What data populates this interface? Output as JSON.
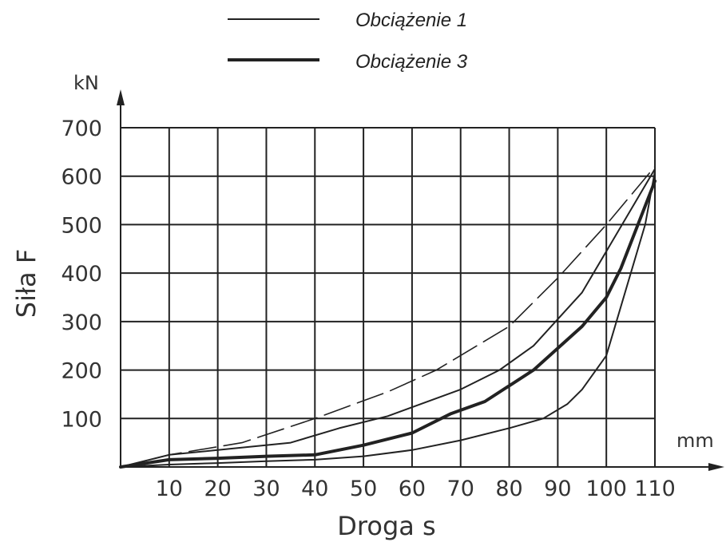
{
  "chart_data": {
    "type": "line",
    "xlabel": "Droga s",
    "ylabel": "Siła F",
    "x_unit": "mm",
    "y_unit": "kN",
    "xlim": [
      0,
      110
    ],
    "ylim": [
      0,
      700
    ],
    "x_ticks": [
      10,
      20,
      30,
      40,
      50,
      60,
      70,
      80,
      90,
      100,
      110
    ],
    "y_ticks": [
      100,
      200,
      300,
      400,
      500,
      600,
      700
    ],
    "grid": true,
    "legend_position": "top",
    "legend": [
      {
        "label": "Obciążenie 1",
        "style": "thin"
      },
      {
        "label": "Obciążenie 3",
        "style": "thick"
      }
    ],
    "series": [
      {
        "style": "dashed",
        "x": [
          0,
          10,
          25,
          40,
          55,
          65,
          80,
          90,
          100,
          110
        ],
        "y": [
          0,
          25,
          50,
          100,
          155,
          200,
          290,
          390,
          500,
          620
        ]
      },
      {
        "style": "thin",
        "x": [
          0,
          10,
          20,
          35,
          45,
          55,
          70,
          78,
          85,
          95,
          110
        ],
        "y": [
          0,
          25,
          35,
          50,
          80,
          105,
          160,
          200,
          250,
          360,
          615
        ]
      },
      {
        "style": "thick",
        "x": [
          0,
          10,
          20,
          30,
          40,
          50,
          60,
          68,
          75,
          85,
          95,
          100,
          103,
          110
        ],
        "y": [
          0,
          15,
          18,
          22,
          25,
          45,
          70,
          110,
          135,
          200,
          290,
          350,
          410,
          590
        ]
      },
      {
        "style": "thin",
        "x": [
          0,
          10,
          20,
          30,
          40,
          50,
          60,
          70,
          80,
          87,
          92,
          95,
          100,
          108,
          110
        ],
        "y": [
          0,
          5,
          8,
          12,
          15,
          22,
          35,
          55,
          80,
          100,
          130,
          160,
          230,
          500,
          610
        ]
      }
    ]
  }
}
